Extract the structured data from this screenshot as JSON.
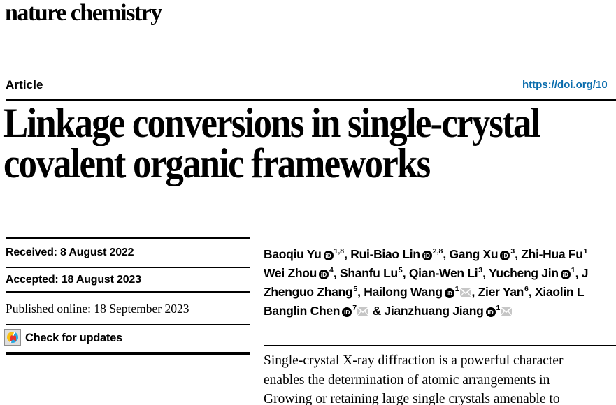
{
  "journal": {
    "wordmark": "nature chemistry"
  },
  "masthead": {
    "article_label": "Article",
    "doi_text": "https://doi.org/10",
    "link_color": "#0b6dad"
  },
  "title": {
    "line1": "Linkage conversions in single-crystal",
    "line2": "covalent organic frameworks"
  },
  "timeline": {
    "received": "Received: 8 August 2022",
    "accepted": "Accepted: 18 August 2023",
    "published": "Published online: 18 September 2023",
    "check_updates_label": "Check for updates"
  },
  "icons": {
    "orcid_label": "iD",
    "crossmark": "crossmark-badge",
    "email": "email-envelope"
  },
  "authors": {
    "lines": [
      [
        {
          "name": "Baoqiu Yu",
          "orcid": true,
          "sup": "1,8",
          "mail": false,
          "sep": ", "
        },
        {
          "name": "Rui-Biao Lin",
          "orcid": true,
          "sup": "2,8",
          "mail": false,
          "sep": ", "
        },
        {
          "name": "Gang Xu",
          "orcid": true,
          "sup": "3",
          "mail": false,
          "sep": ", "
        },
        {
          "name": "Zhi-Hua Fu",
          "orcid": false,
          "sup": "1",
          "mail": false,
          "sep": ""
        }
      ],
      [
        {
          "name": "Wei Zhou",
          "orcid": true,
          "sup": "4",
          "mail": false,
          "sep": ", "
        },
        {
          "name": "Shanfu Lu",
          "orcid": false,
          "sup": "5",
          "mail": false,
          "sep": ", "
        },
        {
          "name": "Qian-Wen Li",
          "orcid": false,
          "sup": "3",
          "mail": false,
          "sep": ", "
        },
        {
          "name": "Yucheng Jin",
          "orcid": true,
          "sup": "1",
          "mail": false,
          "sep": ", "
        },
        {
          "name": "J",
          "orcid": false,
          "sup": "",
          "mail": false,
          "sep": ""
        }
      ],
      [
        {
          "name": "Zhenguo Zhang",
          "orcid": false,
          "sup": "5",
          "mail": false,
          "sep": ", "
        },
        {
          "name": "Hailong Wang",
          "orcid": true,
          "sup": "1",
          "mail": true,
          "sep": ", "
        },
        {
          "name": "Zier Yan",
          "orcid": false,
          "sup": "6",
          "mail": false,
          "sep": ", "
        },
        {
          "name": "Xiaolin L",
          "orcid": false,
          "sup": "",
          "mail": false,
          "sep": ""
        }
      ],
      [
        {
          "name": "Banglin Chen",
          "orcid": true,
          "sup": "7",
          "mail": true,
          "sep": " & "
        },
        {
          "name": "Jianzhuang Jiang",
          "orcid": true,
          "sup": "1",
          "mail": true,
          "sep": ""
        }
      ]
    ]
  },
  "abstract": {
    "lines": [
      "Single-crystal X-ray diffraction is a powerful character",
      "enables the determination of atomic arrangements in",
      "Growing or retaining large single crystals amenable to"
    ]
  }
}
